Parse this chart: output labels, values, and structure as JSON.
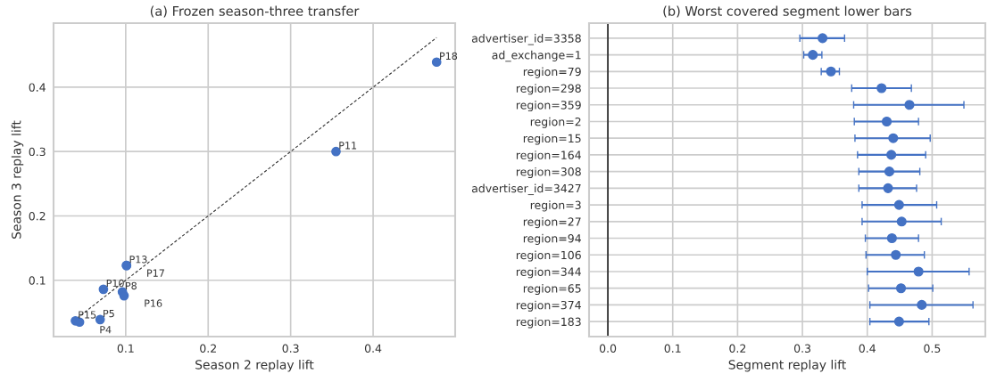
{
  "chart_data": [
    {
      "type": "scatter",
      "title": "(a) Frozen season-three transfer",
      "xlabel": "Season 2 replay lift",
      "ylabel": "Season 3 replay lift",
      "grid": true,
      "xlim": [
        0.0125,
        0.4995
      ],
      "ylim": [
        0.0125,
        0.4995
      ],
      "xticks": [
        0.1,
        0.2,
        0.3,
        0.4
      ],
      "yticks": [
        0.1,
        0.2,
        0.3,
        0.4
      ],
      "series": [
        {
          "type": "scatter",
          "marker": "circle",
          "color": "#4472c4",
          "x": [
            0.477,
            0.355,
            0.101,
            0.101,
            0.073,
            0.096,
            0.098,
            0.069,
            0.039,
            0.044
          ],
          "values": [
            0.439,
            0.3,
            0.123,
            0.123,
            0.086,
            0.082,
            0.076,
            0.039,
            0.037,
            0.035
          ]
        },
        {
          "type": "line",
          "marker": "none",
          "color": "#333333",
          "line_style": "dashed",
          "x": [
            0.036,
            0.477
          ],
          "values": [
            0.036,
            0.477
          ]
        }
      ],
      "annotations": [
        {
          "text": "P18",
          "x": 0.477,
          "y": 0.439
        },
        {
          "text": "P11",
          "x": 0.355,
          "y": 0.3
        },
        {
          "text": "P13",
          "x": 0.101,
          "y": 0.123
        },
        {
          "text": "P17",
          "x": 0.101,
          "y": 0.123
        },
        {
          "text": "P10",
          "x": 0.073,
          "y": 0.086
        },
        {
          "text": "P8",
          "x": 0.096,
          "y": 0.082
        },
        {
          "text": "P16",
          "x": 0.098,
          "y": 0.076
        },
        {
          "text": "P5",
          "x": 0.069,
          "y": 0.039
        },
        {
          "text": "P15",
          "x": 0.039,
          "y": 0.037
        },
        {
          "text": "P4",
          "x": 0.044,
          "y": 0.035
        }
      ]
    },
    {
      "type": "scatter",
      "orientation": "horizontal",
      "title": "(b) Worst covered segment lower bars",
      "xlabel": "Segment replay lift",
      "grid": true,
      "marker": "circle",
      "color": "#4472c4",
      "xlim": [
        -0.029,
        0.582
      ],
      "xticks": [
        {
          "value": 0,
          "label": "0.0"
        },
        0.1,
        0.2,
        0.3,
        0.4,
        0.5
      ],
      "categories": [
        "advertiser_id=3358",
        "ad_exchange=1",
        "region=79",
        "region=298",
        "region=359",
        "region=2",
        "region=15",
        "region=164",
        "region=308",
        "advertiser_id=3427",
        "region=3",
        "region=27",
        "region=94",
        "region=106",
        "region=344",
        "region=65",
        "region=374",
        "region=183"
      ],
      "values": [
        0.331,
        0.316,
        0.344,
        0.422,
        0.465,
        0.43,
        0.44,
        0.437,
        0.434,
        0.432,
        0.449,
        0.453,
        0.438,
        0.444,
        0.479,
        0.452,
        0.484,
        0.449
      ],
      "errors": [
        [
          0.296,
          0.365
        ],
        [
          0.302,
          0.33
        ],
        [
          0.329,
          0.357
        ],
        [
          0.376,
          0.468
        ],
        [
          0.379,
          0.549
        ],
        [
          0.38,
          0.479
        ],
        [
          0.381,
          0.497
        ],
        [
          0.385,
          0.49
        ],
        [
          0.387,
          0.481
        ],
        [
          0.387,
          0.476
        ],
        [
          0.392,
          0.507
        ],
        [
          0.392,
          0.514
        ],
        [
          0.397,
          0.479
        ],
        [
          0.398,
          0.488
        ],
        [
          0.4,
          0.557
        ],
        [
          0.402,
          0.501
        ],
        [
          0.404,
          0.563
        ],
        [
          0.404,
          0.495
        ]
      ],
      "ref_lines": [
        {
          "axis": "x",
          "value": 0,
          "color": "#000000"
        }
      ]
    }
  ]
}
